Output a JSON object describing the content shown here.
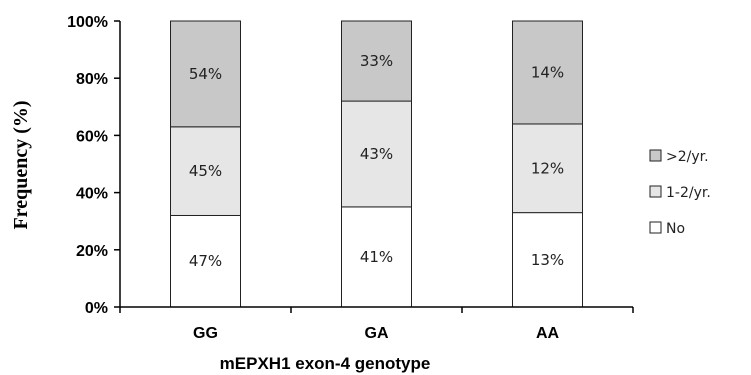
{
  "chart_data": {
    "type": "bar",
    "stacked": true,
    "categories": [
      "GG",
      "GA",
      "AA"
    ],
    "series": [
      {
        "name": "No",
        "values": [
          32,
          35,
          33
        ],
        "labels": [
          "47%",
          "41%",
          "13%"
        ],
        "color": "#ffffff"
      },
      {
        "name": "1-2/yr.",
        "values": [
          31,
          37,
          31
        ],
        "labels": [
          "45%",
          "43%",
          "12%"
        ],
        "color": "#e6e6e6"
      },
      {
        "name": ">2/yr.",
        "values": [
          37,
          28,
          36
        ],
        "labels": [
          "54%",
          "33%",
          "14%"
        ],
        "color": "#c8c8c8"
      }
    ],
    "xlabel": "mEPXH1 exon-4 genotype",
    "ylabel": "Frequency (%)",
    "ylim": [
      0,
      100
    ],
    "yticks": [
      "0%",
      "20%",
      "40%",
      "60%",
      "80%",
      "100%"
    ],
    "legend_position": "right",
    "legend_order": [
      ">2/yr.",
      "1-2/yr.",
      "No"
    ],
    "grid": false
  }
}
